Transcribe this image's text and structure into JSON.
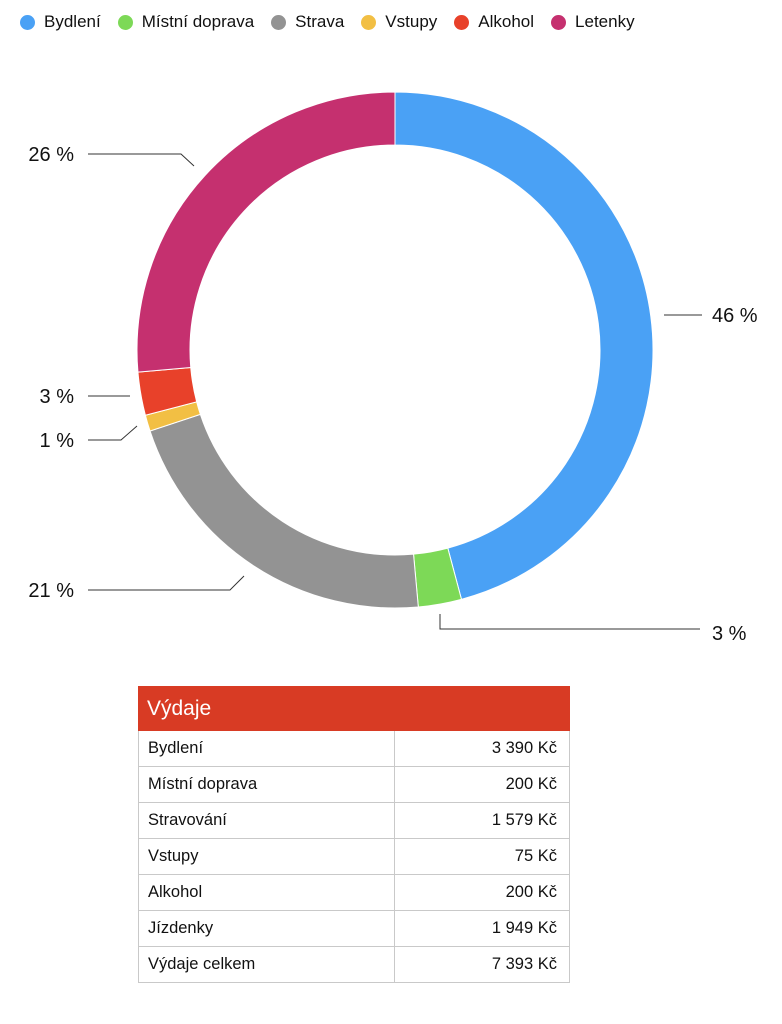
{
  "chart_data": {
    "type": "pie",
    "variant": "donut",
    "categories": [
      "Bydlení",
      "Místní doprava",
      "Strava",
      "Vstupy",
      "Alkohol",
      "Letenky"
    ],
    "values": [
      3390,
      200,
      1579,
      75,
      200,
      1949
    ],
    "percent_labels": [
      "46 %",
      "3 %",
      "21 %",
      "1 %",
      "3 %",
      "26 %"
    ],
    "colors": [
      "#4aa1f5",
      "#7dd957",
      "#939393",
      "#f2bf44",
      "#e8412a",
      "#c5306f"
    ],
    "legend_position": "top"
  },
  "table": {
    "title": "Výdaje",
    "header_color": "#d83b24",
    "rows": [
      {
        "label": "Bydlení",
        "value": "3 390 Kč"
      },
      {
        "label": "Místní doprava",
        "value": "200 Kč"
      },
      {
        "label": "Stravování",
        "value": "1 579 Kč"
      },
      {
        "label": "Vstupy",
        "value": "75 Kč"
      },
      {
        "label": "Alkohol",
        "value": "200 Kč"
      },
      {
        "label": "Jízdenky",
        "value": "1 949 Kč"
      },
      {
        "label": "Výdaje celkem",
        "value": "7 393 Kč"
      }
    ]
  }
}
